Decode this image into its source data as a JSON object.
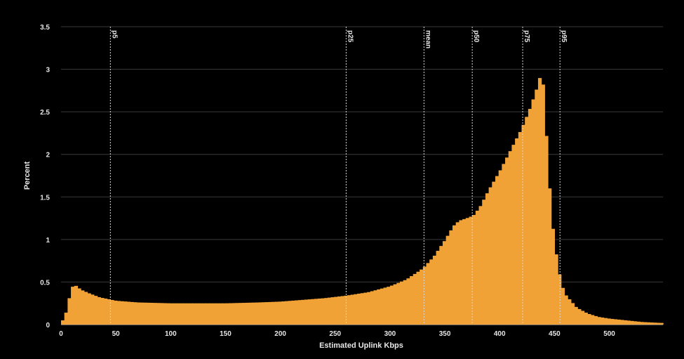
{
  "chart_data": {
    "type": "bar",
    "title": "",
    "xlabel": "Estimated Uplink Kbps",
    "ylabel": "Percent",
    "xlim": [
      0,
      547
    ],
    "ylim": [
      0,
      3.5
    ],
    "xticks": [
      0,
      50,
      100,
      150,
      200,
      250,
      300,
      350,
      400,
      450,
      500
    ],
    "yticks": [
      0,
      0.5,
      1,
      1.5,
      2,
      2.5,
      3,
      3.5
    ],
    "ytick_labels": [
      "0",
      "0.5",
      "1",
      "1.5",
      "2",
      "2.5",
      "3",
      "3.5"
    ],
    "grid": "horizontal",
    "bar_color": "#f0a237",
    "bin_width": 3,
    "points": [
      [
        0,
        0.02
      ],
      [
        3,
        0.08
      ],
      [
        6,
        0.2
      ],
      [
        9,
        0.42
      ],
      [
        12,
        0.47
      ],
      [
        15,
        0.44
      ],
      [
        18,
        0.41
      ],
      [
        25,
        0.37
      ],
      [
        35,
        0.32
      ],
      [
        50,
        0.28
      ],
      [
        70,
        0.26
      ],
      [
        100,
        0.25
      ],
      [
        150,
        0.25
      ],
      [
        180,
        0.26
      ],
      [
        200,
        0.27
      ],
      [
        220,
        0.29
      ],
      [
        240,
        0.31
      ],
      [
        260,
        0.34
      ],
      [
        280,
        0.38
      ],
      [
        300,
        0.45
      ],
      [
        315,
        0.53
      ],
      [
        330,
        0.66
      ],
      [
        340,
        0.8
      ],
      [
        350,
        0.99
      ],
      [
        358,
        1.16
      ],
      [
        363,
        1.22
      ],
      [
        370,
        1.25
      ],
      [
        376,
        1.28
      ],
      [
        382,
        1.38
      ],
      [
        390,
        1.58
      ],
      [
        400,
        1.8
      ],
      [
        410,
        2.05
      ],
      [
        420,
        2.3
      ],
      [
        428,
        2.55
      ],
      [
        434,
        2.78
      ],
      [
        437,
        2.92
      ],
      [
        440,
        2.8
      ],
      [
        443,
        2.1
      ],
      [
        447,
        1.3
      ],
      [
        450,
        0.95
      ],
      [
        453,
        0.7
      ],
      [
        456,
        0.48
      ],
      [
        460,
        0.35
      ],
      [
        470,
        0.2
      ],
      [
        480,
        0.13
      ],
      [
        490,
        0.09
      ],
      [
        500,
        0.07
      ],
      [
        515,
        0.05
      ],
      [
        530,
        0.03
      ],
      [
        546,
        0.02
      ]
    ],
    "markers": [
      {
        "label": "p5",
        "x": 45
      },
      {
        "label": "p25",
        "x": 260
      },
      {
        "label": "mean",
        "x": 331
      },
      {
        "label": "p50",
        "x": 375
      },
      {
        "label": "p75",
        "x": 421
      },
      {
        "label": "p95",
        "x": 455
      }
    ]
  }
}
